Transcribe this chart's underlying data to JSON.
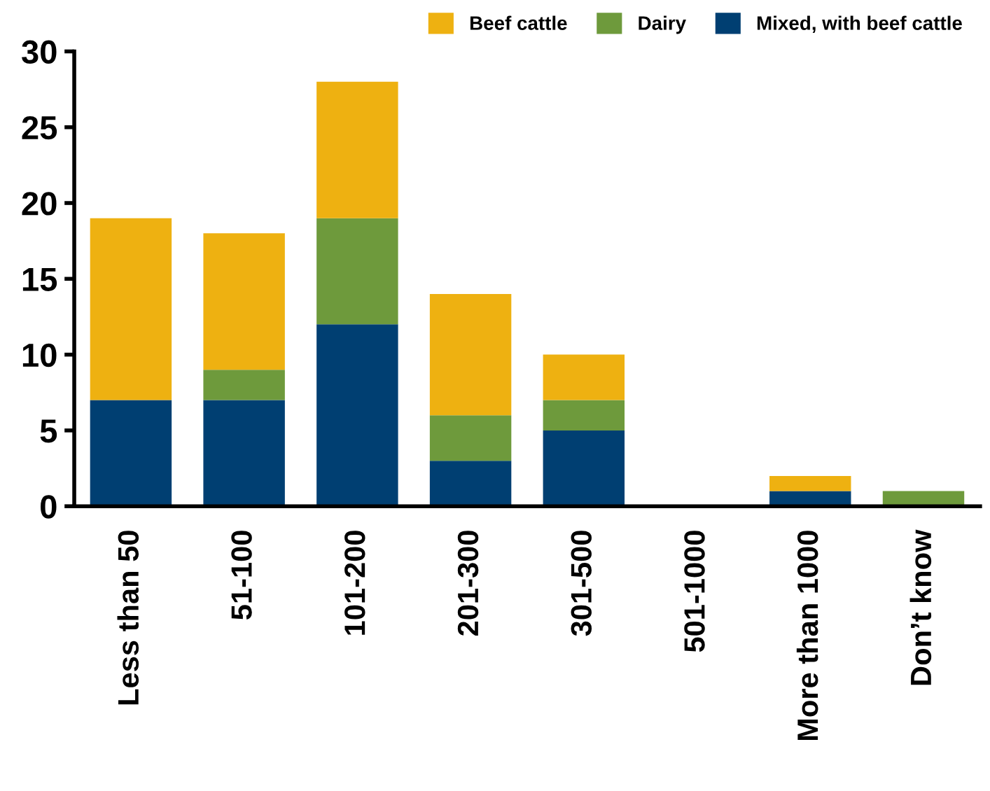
{
  "chart_data": {
    "type": "bar",
    "stacked": true,
    "categories": [
      "Less than 50",
      "51-100",
      "101-200",
      "201-300",
      "301-500",
      "501-1000",
      "More than 1000",
      "Don’t know"
    ],
    "series": [
      {
        "name": "Mixed, with beef cattle",
        "color": "#003f72",
        "values": [
          7,
          7,
          12,
          3,
          5,
          0,
          1,
          0
        ]
      },
      {
        "name": "Dairy",
        "color": "#6e9a3c",
        "values": [
          0,
          2,
          7,
          3,
          2,
          0,
          0,
          1
        ]
      },
      {
        "name": "Beef cattle",
        "color": "#eeb111",
        "values": [
          12,
          9,
          9,
          8,
          3,
          0,
          1,
          0
        ]
      }
    ],
    "ylim": [
      0,
      30
    ],
    "yticks": [
      0,
      5,
      10,
      15,
      20,
      25,
      30
    ],
    "grid": false,
    "legend": "top right"
  }
}
